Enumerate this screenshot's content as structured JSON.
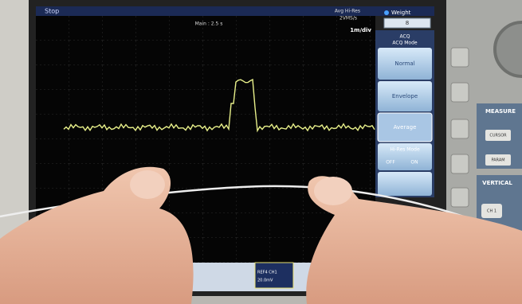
{
  "screen": {
    "status": "Stop",
    "timebase": "Main : 2.5 s",
    "acq_info": [
      "Avg Hi-Res",
      "2VMS/s"
    ],
    "scale": "1m/div",
    "weight": {
      "label": "Weight",
      "value": "8"
    },
    "channel_box": [
      "REF4 CH1",
      "20.0mV"
    ]
  },
  "menu": {
    "title": "ACQ",
    "subtitle": "ACQ Mode",
    "buttons": [
      "Normal",
      "Envelope",
      "Average"
    ],
    "hires": {
      "label": "Hi-Res Mode",
      "options": [
        "OFF",
        "ON"
      ]
    }
  },
  "panel": {
    "measure": "MEASURE",
    "cursor": "CURSOR",
    "param": "PARAM",
    "vertical": "VERTICAL",
    "ch1": "CH 1"
  }
}
